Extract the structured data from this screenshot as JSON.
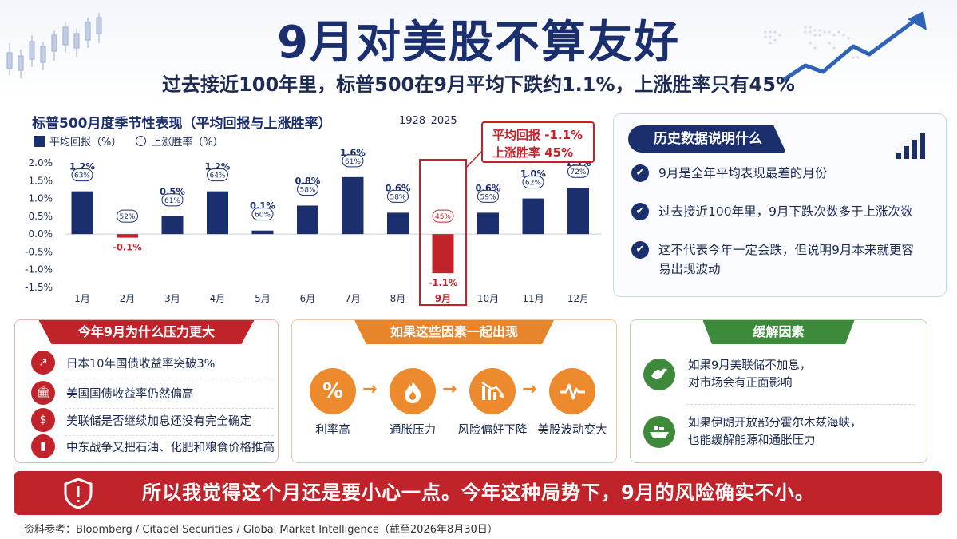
{
  "header": {
    "title": "9月对美股不算友好",
    "subtitle": "过去接近100年里，标普500在9月平均下跌约1.1%，上涨胜率只有45%"
  },
  "chart_data": {
    "type": "bar",
    "title": "标普500月度季节性表现（平均回报与上涨胜率）",
    "period": "1928–2025",
    "legend": [
      "平均回报（%）",
      "上涨胜率（%）"
    ],
    "categories": [
      "1月",
      "2月",
      "3月",
      "4月",
      "5月",
      "6月",
      "7月",
      "8月",
      "9月",
      "10月",
      "11月",
      "12月"
    ],
    "values": [
      1.2,
      -0.1,
      0.5,
      1.2,
      0.1,
      0.8,
      1.6,
      0.6,
      -1.1,
      0.6,
      1.0,
      1.3
    ],
    "value_labels": [
      "1.2%",
      "-0.1%",
      "0.5%",
      "1.2%",
      "0.1%",
      "0.8%",
      "1.6%",
      "0.6%",
      "-1.1%",
      "0.6%",
      "1.0%",
      "1.3%"
    ],
    "win_rates": [
      "63%",
      "52%",
      "61%",
      "64%",
      "60%",
      "58%",
      "61%",
      "58%",
      "45%",
      "59%",
      "62%",
      "72%"
    ],
    "yticks": [
      "2.0%",
      "1.5%",
      "1.0%",
      "0.5%",
      "0.0%",
      "-0.5%",
      "-1.0%",
      "-1.5%"
    ],
    "ylim": [
      -1.5,
      2.0
    ],
    "highlight_index": 8,
    "colors": {
      "positive": "#1b2f6e",
      "negative": "#c1232b"
    },
    "callout": {
      "line1": "平均回报 -1.1%",
      "line2": "上涨胜率 45%"
    }
  },
  "history": {
    "title": "历史数据说明什么",
    "items": [
      "9月是全年平均表现最差的月份",
      "过去接近100年里，9月下跌次数多于上涨次数",
      "这不代表今年一定会跌，但说明9月本来就更容易出现波动"
    ]
  },
  "pressure": {
    "title": "今年9月为什么压力更大",
    "items": [
      {
        "icon": "chart-up-icon",
        "text": "日本10年国债收益率突破3%"
      },
      {
        "icon": "bank-icon",
        "text": "美国国债收益率仍然偏高"
      },
      {
        "icon": "fed-icon",
        "text": "美联储是否继续加息还没有完全确定"
      },
      {
        "icon": "oil-barrel-icon",
        "text": "中东战争又把石油、化肥和粮食价格推高"
      }
    ]
  },
  "factors": {
    "title": "如果这些因素一起出现",
    "steps": [
      {
        "icon": "percent-icon",
        "label": "利率高"
      },
      {
        "icon": "fire-icon",
        "label": "通胀压力"
      },
      {
        "icon": "chart-down-icon",
        "label": "风险偏好下降"
      },
      {
        "icon": "pulse-icon",
        "label": "美股波动变大"
      }
    ]
  },
  "relief": {
    "title": "缓解因素",
    "items": [
      {
        "icon": "dove-icon",
        "line1": "如果9月美联储不加息，",
        "line2": "对市场会有正面影响"
      },
      {
        "icon": "ship-icon",
        "line1": "如果伊朗开放部分霍尔木兹海峡，",
        "line2": "也能缓解能源和通胀压力"
      }
    ]
  },
  "banner": {
    "text": "所以我觉得这个月还是要小心一点。今年这种局势下，9月的风险确实不小。"
  },
  "source": "资料参考：Bloomberg / Citadel Securities / Global Market Intelligence（截至2026年8月30日）"
}
